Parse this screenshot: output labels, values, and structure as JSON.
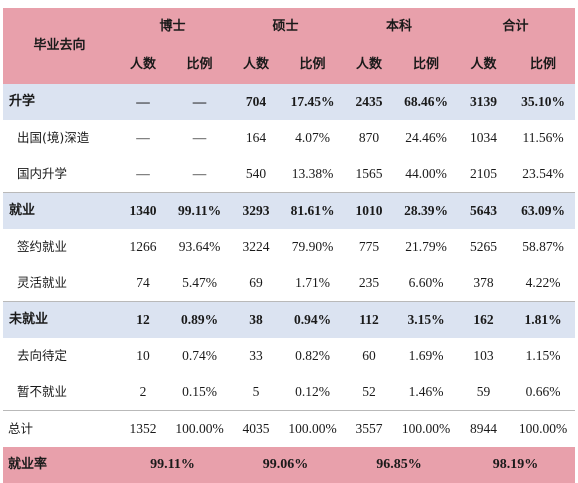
{
  "header": {
    "destination_label": "毕业去向",
    "groups": [
      "博士",
      "硕士",
      "本科",
      "合计"
    ],
    "count_label": "人数",
    "ratio_label": "比例"
  },
  "rows": [
    {
      "type": "main",
      "label": "升学",
      "cells": [
        "—",
        "—",
        "704",
        "17.45%",
        "2435",
        "68.46%",
        "3139",
        "35.10%"
      ]
    },
    {
      "type": "sub",
      "label": "出国(境)深造",
      "cells": [
        "—",
        "—",
        "164",
        "4.07%",
        "870",
        "24.46%",
        "1034",
        "11.56%"
      ]
    },
    {
      "type": "sub",
      "label": "国内升学",
      "cells": [
        "—",
        "—",
        "540",
        "13.38%",
        "1565",
        "44.00%",
        "2105",
        "23.54%"
      ]
    },
    {
      "type": "main",
      "label": "就业",
      "cells": [
        "1340",
        "99.11%",
        "3293",
        "81.61%",
        "1010",
        "28.39%",
        "5643",
        "63.09%"
      ]
    },
    {
      "type": "sub",
      "label": "签约就业",
      "cells": [
        "1266",
        "93.64%",
        "3224",
        "79.90%",
        "775",
        "21.79%",
        "5265",
        "58.87%"
      ]
    },
    {
      "type": "sub",
      "label": "灵活就业",
      "cells": [
        "74",
        "5.47%",
        "69",
        "1.71%",
        "235",
        "6.60%",
        "378",
        "4.22%"
      ]
    },
    {
      "type": "main",
      "label": "未就业",
      "cells": [
        "12",
        "0.89%",
        "38",
        "0.94%",
        "112",
        "3.15%",
        "162",
        "1.81%"
      ]
    },
    {
      "type": "sub",
      "label": "去向待定",
      "cells": [
        "10",
        "0.74%",
        "33",
        "0.82%",
        "60",
        "1.69%",
        "103",
        "1.15%"
      ]
    },
    {
      "type": "sub",
      "label": "暂不就业",
      "cells": [
        "2",
        "0.15%",
        "5",
        "0.12%",
        "52",
        "1.46%",
        "59",
        "0.66%"
      ]
    },
    {
      "type": "total",
      "label": "总计",
      "cells": [
        "1352",
        "100.00%",
        "4035",
        "100.00%",
        "3557",
        "100.00%",
        "8944",
        "100.00%"
      ]
    }
  ],
  "employment_rate": {
    "label": "就业率",
    "values": [
      "99.11%",
      "99.06%",
      "96.85%",
      "98.19%"
    ]
  },
  "colors": {
    "header_bg": "#e8a0ab",
    "category_bg": "#dbe3f1"
  }
}
